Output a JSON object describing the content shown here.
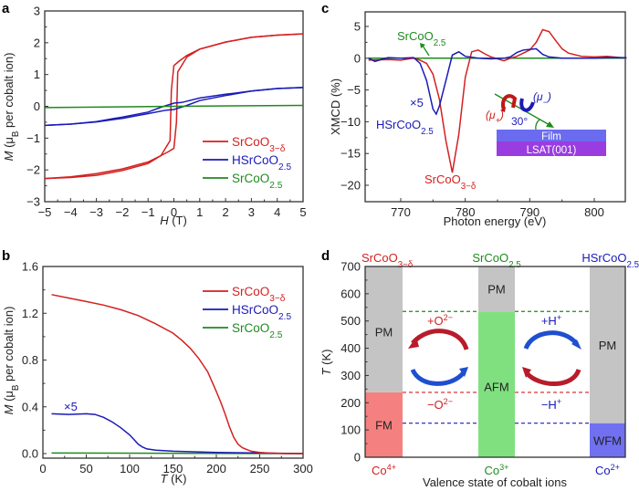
{
  "chart_data": [
    {
      "panel": "a",
      "type": "line",
      "xlabel": "H (T)",
      "ylabel": "M (μB per cobalt ion)",
      "xlim": [
        -5,
        5
      ],
      "ylim": [
        -3,
        3
      ],
      "xticks": [
        -5,
        -4,
        -3,
        -2,
        -1,
        0,
        1,
        2,
        3,
        4,
        5
      ],
      "yticks": [
        -3,
        -2,
        -1,
        0,
        1,
        2,
        3
      ],
      "legend_position": "bottom-right",
      "series": [
        {
          "name": "SrCoO3−δ",
          "color": "#d42020",
          "x_up": [
            -5,
            -4,
            -3,
            -2,
            -1,
            -0.5,
            -0.2,
            0.0,
            0.1,
            0.15,
            0.5,
            1,
            2,
            3,
            4,
            5
          ],
          "y_up": [
            -2.27,
            -2.22,
            -2.12,
            -1.97,
            -1.75,
            -1.55,
            -1.42,
            -1.32,
            -0.5,
            1.08,
            1.55,
            1.8,
            2.02,
            2.17,
            2.24,
            2.28
          ],
          "x_down": [
            5,
            4,
            3,
            2,
            1,
            0.5,
            0.2,
            0.0,
            -0.1,
            -0.15,
            -0.5,
            -1,
            -2,
            -3,
            -4,
            -5
          ],
          "y_down": [
            2.28,
            2.24,
            2.17,
            2.02,
            1.8,
            1.6,
            1.42,
            1.28,
            0.5,
            -1.08,
            -1.55,
            -1.8,
            -2.02,
            -2.17,
            -2.24,
            -2.27
          ]
        },
        {
          "name": "HSrCoO2.5",
          "color": "#1a1ab8",
          "x_up": [
            -5,
            -4,
            -3,
            -2,
            -1,
            -0.3,
            0,
            0.5,
            1,
            2,
            3,
            4,
            5
          ],
          "y_up": [
            -0.6,
            -0.56,
            -0.49,
            -0.38,
            -0.23,
            -0.12,
            -0.1,
            0.03,
            0.18,
            0.34,
            0.48,
            0.56,
            0.59
          ],
          "x_down": [
            5,
            4,
            3,
            2,
            1,
            0.3,
            0,
            -0.5,
            -1,
            -2,
            -3,
            -4,
            -5
          ],
          "y_down": [
            0.59,
            0.56,
            0.48,
            0.38,
            0.26,
            0.12,
            0.1,
            -0.03,
            -0.18,
            -0.34,
            -0.48,
            -0.56,
            -0.6
          ]
        },
        {
          "name": "SrCoO2.5",
          "color": "#1f8a1f",
          "x": [
            -5,
            0,
            5
          ],
          "y": [
            -0.04,
            0.0,
            0.03
          ]
        }
      ]
    },
    {
      "panel": "b",
      "type": "line",
      "xlabel": "T (K)",
      "ylabel": "M (μB per cobalt ion)",
      "xlim": [
        0,
        300
      ],
      "ylim": [
        -0.05,
        1.6
      ],
      "xticks": [
        0,
        50,
        100,
        150,
        200,
        250,
        300
      ],
      "yticks": [
        "0.0",
        "0.4",
        "0.8",
        "1.2",
        "1.6"
      ],
      "legend_position": "top-right",
      "annotations": [
        {
          "text": "×5",
          "near_series": "HSrCoO2.5"
        }
      ],
      "series": [
        {
          "name": "SrCoO3−δ",
          "color": "#d42020",
          "x": [
            10,
            30,
            50,
            70,
            90,
            110,
            130,
            150,
            160,
            170,
            180,
            190,
            200,
            205,
            210,
            215,
            220,
            225,
            230,
            240,
            250,
            260,
            280,
            300
          ],
          "y": [
            1.36,
            1.33,
            1.3,
            1.27,
            1.23,
            1.18,
            1.11,
            1.03,
            0.97,
            0.9,
            0.81,
            0.7,
            0.53,
            0.44,
            0.34,
            0.23,
            0.14,
            0.08,
            0.05,
            0.02,
            0.01,
            0.005,
            0.0,
            0.0
          ]
        },
        {
          "name": "HSrCoO2.5",
          "color": "#1a1ab8",
          "x": [
            10,
            30,
            50,
            60,
            70,
            80,
            90,
            100,
            105,
            110,
            115,
            120,
            130,
            150,
            200,
            250,
            300
          ],
          "y": [
            0.34,
            0.335,
            0.34,
            0.335,
            0.31,
            0.27,
            0.22,
            0.16,
            0.12,
            0.08,
            0.055,
            0.04,
            0.03,
            0.02,
            0.01,
            0.005,
            0.0
          ]
        },
        {
          "name": "SrCoO2.5",
          "color": "#1f8a1f",
          "x": [
            10,
            300
          ],
          "y": [
            0.005,
            0.0
          ]
        }
      ]
    },
    {
      "panel": "c",
      "type": "line",
      "xlabel": "Photon energy (eV)",
      "ylabel": "XMCD (%)",
      "xlim": [
        765,
        805
      ],
      "ylim": [
        -22.5,
        7.5
      ],
      "xticks": [
        770,
        780,
        790,
        800
      ],
      "yticks": [
        -20,
        -15,
        -10,
        -5,
        0,
        5
      ],
      "annotations": [
        {
          "text": "SrCoO2.5",
          "color": "#1f8a1f"
        },
        {
          "text": "×5",
          "color": "#1a1ab8"
        },
        {
          "text": "HSrCoO2.5",
          "color": "#1a1ab8"
        },
        {
          "text": "SrCoO3−δ",
          "color": "#d42020"
        }
      ],
      "inset": {
        "labels": {
          "mu_plus": "(μ+)",
          "mu_minus": "(μ−)",
          "angle": "30°",
          "film": "Film",
          "substrate": "LSAT(001)"
        },
        "colors": {
          "film": "#6b6bf0",
          "substrate": "#9a3de0"
        }
      },
      "series": [
        {
          "name": "SrCoO3−δ",
          "color": "#d42020",
          "x": [
            765,
            768,
            770,
            772,
            773,
            774,
            775,
            776,
            777,
            778,
            779,
            780,
            781,
            782,
            783,
            784,
            786,
            787,
            788,
            789,
            790,
            791,
            792,
            793,
            794,
            795,
            796,
            798,
            800,
            802,
            805
          ],
          "y": [
            -0.3,
            -0.2,
            -0.3,
            0.0,
            -0.3,
            -0.8,
            -2.5,
            -6.5,
            -13,
            -18,
            -12,
            -3,
            1,
            1.3,
            0.7,
            0.2,
            -0.4,
            0,
            0.3,
            0.8,
            1.3,
            2.5,
            4.5,
            4.2,
            2.8,
            1.5,
            0.8,
            0.3,
            0.2,
            0.3,
            0.0
          ]
        },
        {
          "name": "HSrCoO2.5",
          "color": "#1a1ab8",
          "x": [
            765,
            766,
            768,
            770,
            772,
            773,
            774,
            775,
            775.5,
            776,
            777,
            778,
            779,
            780,
            782,
            784,
            786,
            787,
            788,
            789,
            790,
            791,
            792,
            793,
            795,
            798,
            800,
            802,
            805
          ],
          "y": [
            0.0,
            -0.5,
            0.1,
            0.0,
            0.1,
            -0.8,
            -3.5,
            -8.0,
            -8.8,
            -7.5,
            -3.5,
            0.5,
            1.0,
            0.3,
            0.0,
            -0.1,
            0.0,
            0.2,
            0.9,
            1.3,
            1.4,
            1.5,
            0.6,
            0.2,
            0.0,
            0.0,
            0.0,
            0.1,
            0.1
          ]
        },
        {
          "name": "SrCoO2.5",
          "color": "#1f8a1f",
          "x": [
            765,
            805
          ],
          "y": [
            0.0,
            0.0
          ]
        }
      ]
    },
    {
      "panel": "d",
      "type": "diagram",
      "xlabel": "Valence state of cobalt ions",
      "ylabel": "T (K)",
      "ylim": [
        0,
        700
      ],
      "yticks": [
        0,
        100,
        200,
        300,
        400,
        500,
        600,
        700
      ],
      "columns": [
        {
          "compound": "SrCoO3−δ",
          "valence": "Co4+",
          "color": "#d42020",
          "phases": [
            {
              "name": "FM",
              "from": 0,
              "to": 238,
              "color": "#f58080"
            },
            {
              "name": "PM",
              "from": 238,
              "to": 700,
              "color": "#c4c4c4"
            }
          ]
        },
        {
          "compound": "SrCoO2.5",
          "valence": "Co3+",
          "color": "#1f8a1f",
          "phases": [
            {
              "name": "AFM",
              "from": 0,
              "to": 535,
              "color": "#80e080"
            },
            {
              "name": "PM",
              "from": 535,
              "to": 700,
              "color": "#c4c4c4"
            }
          ]
        },
        {
          "compound": "HSrCoO2.5",
          "valence": "Co2+",
          "color": "#1a1ab8",
          "phases": [
            {
              "name": "WFM",
              "from": 0,
              "to": 125,
              "color": "#7070f0"
            },
            {
              "name": "PM",
              "from": 125,
              "to": 700,
              "color": "#c4c4c4"
            }
          ]
        }
      ],
      "transition_lines": [
        {
          "T": 535,
          "color": "#1f8a1f"
        },
        {
          "T": 238,
          "color": "#d42020"
        },
        {
          "T": 125,
          "color": "#1a1ab8"
        }
      ],
      "arrows": [
        {
          "label": "+O2−",
          "color": "#d42020"
        },
        {
          "label": "−O2−",
          "color": "#d42020"
        },
        {
          "label": "+H+",
          "color": "#1a1ab8"
        },
        {
          "label": "−H+",
          "color": "#1a1ab8"
        }
      ]
    }
  ],
  "panels": {
    "a": {
      "letter": "a",
      "xlabel_var": "H",
      "xlabel_unit": " (T)",
      "ylabel_var": "M",
      "ylabel_rest": " (μ",
      "ylabel_sub": "B",
      "ylabel_end": " per cobalt ion)"
    },
    "b": {
      "letter": "b",
      "xlabel_var": "T",
      "xlabel_unit": " (K)",
      "annot": "×5"
    },
    "c": {
      "letter": "c",
      "xlabel": "Photon energy (eV)",
      "ylabel": "XMCD (%)"
    },
    "d": {
      "letter": "d",
      "xlabel": "Valence state of cobalt ions",
      "ylabel_var": "T",
      "ylabel_unit": " (K)"
    }
  },
  "legend": [
    {
      "base": "SrCoO",
      "sub": "3−δ",
      "color": "#d42020"
    },
    {
      "base": "HSrCoO",
      "sub": "2.5",
      "color": "#1a1ab8"
    },
    {
      "base": "SrCoO",
      "sub": "2.5",
      "color": "#1f8a1f"
    }
  ]
}
